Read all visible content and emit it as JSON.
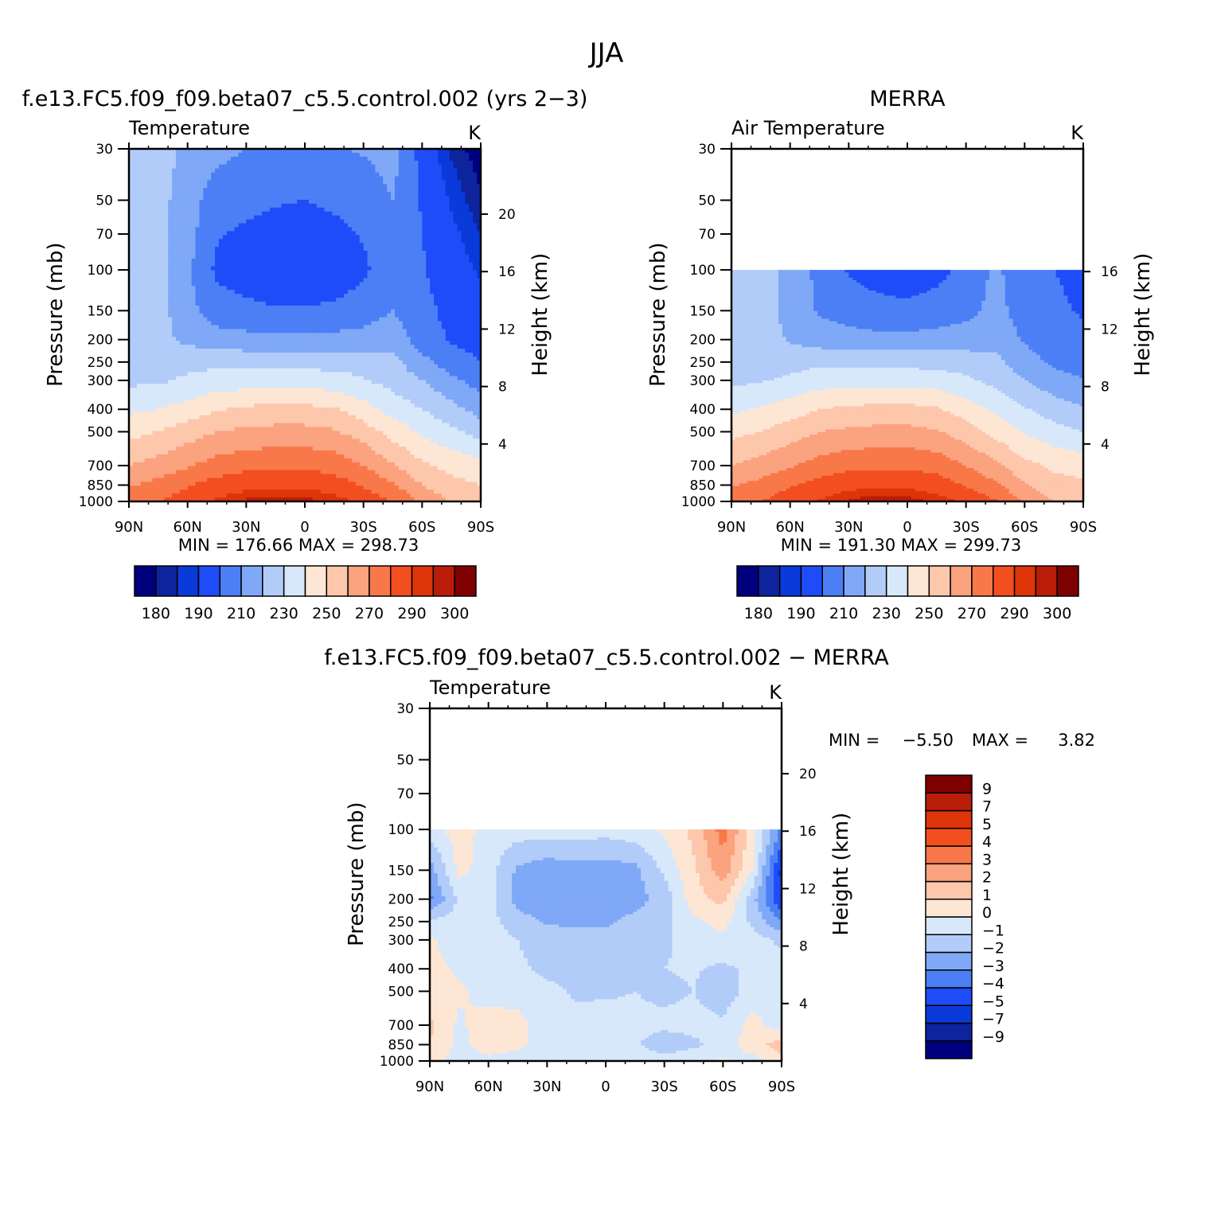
{
  "figure": {
    "title": "JJA"
  },
  "chart_data": [
    {
      "type": "heatmap",
      "panel_title": "f.e13.FC5.f09_f09.beta07_c5.5.control.002 (yrs 2−3)",
      "variable": "Temperature",
      "units": "K",
      "x_ticks": [
        "90N",
        "60N",
        "30N",
        "0",
        "30S",
        "60S",
        "90S"
      ],
      "y_ticks": [
        "30",
        "50",
        "70",
        "100",
        "150",
        "200",
        "250",
        "300",
        "400",
        "500",
        "700",
        "850",
        "1000"
      ],
      "y_ticks_right": [
        "20",
        "16",
        "12",
        "8",
        "4"
      ],
      "ylabel": "Pressure (mb)",
      "ylabel_right": "Height (km)",
      "x_range": [
        90,
        -90
      ],
      "y_range_mb": [
        1000,
        30
      ],
      "y_scale": "log",
      "data_top_mb": 30,
      "min_text": "MIN = 176.66",
      "max_text": "MAX = 298.73",
      "colorbar_labels": [
        "180",
        "190",
        "210",
        "230",
        "250",
        "270",
        "290",
        "300"
      ],
      "colorbar_orientation": "horizontal",
      "field": {
        "lat": [
          90,
          75,
          60,
          45,
          30,
          15,
          0,
          -15,
          -30,
          -45,
          -60,
          -75,
          -90
        ],
        "lev": [
          30,
          50,
          70,
          100,
          150,
          200,
          250,
          300,
          400,
          500,
          700,
          850,
          1000
        ],
        "values": [
          [
            226,
            224,
            218,
            213,
            210,
            209,
            209,
            209,
            211,
            214,
            196,
            184,
            176
          ],
          [
            226,
            224,
            214,
            205,
            203,
            201,
            200,
            202,
            204,
            210,
            199,
            189,
            181
          ],
          [
            227,
            223,
            214,
            201,
            198,
            196,
            195,
            197,
            201,
            208,
            200,
            192,
            185
          ],
          [
            227,
            223,
            212,
            198,
            194,
            192,
            192,
            194,
            198,
            207,
            201,
            194,
            189
          ],
          [
            227,
            224,
            213,
            205,
            203,
            201,
            201,
            202,
            205,
            210,
            203,
            197,
            193
          ],
          [
            225,
            223,
            218,
            214,
            213,
            212,
            212,
            213,
            214,
            216,
            205,
            199,
            196
          ],
          [
            226,
            226,
            226,
            228,
            227,
            227,
            227,
            226,
            225,
            223,
            213,
            205,
            200
          ],
          [
            228,
            228,
            232,
            234,
            235,
            235,
            235,
            234,
            231,
            226,
            220,
            212,
            206
          ],
          [
            238,
            240,
            244,
            249,
            252,
            253,
            253,
            251,
            244,
            236,
            230,
            223,
            216
          ],
          [
            247,
            250,
            255,
            260,
            262,
            263,
            263,
            261,
            255,
            246,
            238,
            232,
            226
          ],
          [
            260,
            264,
            269,
            274,
            277,
            278,
            278,
            276,
            270,
            261,
            252,
            247,
            244
          ],
          [
            269,
            273,
            279,
            284,
            287,
            288,
            288,
            285,
            279,
            271,
            260,
            253,
            250
          ],
          [
            276,
            280,
            286,
            291,
            296,
            298,
            297,
            294,
            288,
            280,
            268,
            259,
            255
          ]
        ]
      },
      "levels": [
        180,
        185,
        190,
        200,
        210,
        220,
        230,
        240,
        250,
        260,
        270,
        280,
        290,
        295,
        300
      ],
      "colors": [
        "#00007F",
        "#0D249C",
        "#0A3AD9",
        "#1F4CF9",
        "#4C7FF5",
        "#7FA9F7",
        "#B2CCF9",
        "#D8E8FB",
        "#FEE6D4",
        "#FDC7AC",
        "#FBA27F",
        "#F87849",
        "#F24E1F",
        "#DD340A",
        "#BA1D09",
        "#7E0000"
      ]
    },
    {
      "type": "heatmap",
      "panel_title": "MERRA",
      "variable": "Air Temperature",
      "units": "K",
      "x_ticks": [
        "90N",
        "60N",
        "30N",
        "0",
        "30S",
        "60S",
        "90S"
      ],
      "y_ticks": [
        "30",
        "50",
        "70",
        "100",
        "150",
        "200",
        "250",
        "300",
        "400",
        "500",
        "700",
        "850",
        "1000"
      ],
      "y_ticks_right": [
        "16",
        "12",
        "8",
        "4"
      ],
      "ylabel": "Pressure (mb)",
      "ylabel_right": "Height (km)",
      "x_range": [
        90,
        -90
      ],
      "y_range_mb": [
        1000,
        30
      ],
      "y_scale": "log",
      "data_top_mb": 100,
      "min_text": "MIN = 191.30",
      "max_text": "MAX = 299.73",
      "colorbar_labels": [
        "180",
        "190",
        "210",
        "230",
        "250",
        "270",
        "290",
        "300"
      ],
      "colorbar_orientation": "horizontal",
      "field": {
        "lat": [
          90,
          75,
          60,
          45,
          30,
          15,
          0,
          -15,
          -30,
          -45,
          -60,
          -75,
          -90
        ],
        "lev": [
          100,
          150,
          200,
          250,
          300,
          400,
          500,
          700,
          850,
          1000
        ],
        "values": [
          [
            226,
            225,
            217,
            207,
            199,
            196,
            195,
            197,
            203,
            212,
            204,
            200,
            197
          ],
          [
            227,
            225,
            216,
            209,
            205,
            203,
            202,
            204,
            207,
            213,
            206,
            202,
            199
          ],
          [
            226,
            225,
            219,
            215,
            214,
            213,
            213,
            214,
            215,
            216,
            209,
            205,
            202
          ],
          [
            226,
            226,
            226,
            228,
            227,
            227,
            227,
            226,
            225,
            223,
            214,
            208,
            205
          ],
          [
            228,
            229,
            232,
            235,
            236,
            236,
            236,
            235,
            232,
            227,
            220,
            214,
            211
          ],
          [
            238,
            241,
            245,
            250,
            252,
            253,
            253,
            251,
            245,
            238,
            231,
            225,
            221
          ],
          [
            247,
            250,
            255,
            260,
            262,
            263,
            263,
            261,
            255,
            247,
            239,
            234,
            230
          ],
          [
            260,
            264,
            269,
            274,
            277,
            278,
            278,
            276,
            270,
            262,
            253,
            248,
            246
          ],
          [
            269,
            273,
            279,
            284,
            287,
            288,
            288,
            285,
            279,
            272,
            261,
            254,
            252
          ],
          [
            276,
            280,
            286,
            291,
            296,
            299,
            298,
            294,
            288,
            281,
            269,
            260,
            257
          ]
        ]
      },
      "levels": [
        180,
        185,
        190,
        200,
        210,
        220,
        230,
        240,
        250,
        260,
        270,
        280,
        290,
        295,
        300
      ],
      "colors": [
        "#00007F",
        "#0D249C",
        "#0A3AD9",
        "#1F4CF9",
        "#4C7FF5",
        "#7FA9F7",
        "#B2CCF9",
        "#D8E8FB",
        "#FEE6D4",
        "#FDC7AC",
        "#FBA27F",
        "#F87849",
        "#F24E1F",
        "#DD340A",
        "#BA1D09",
        "#7E0000"
      ]
    },
    {
      "type": "heatmap",
      "panel_title": "f.e13.FC5.f09_f09.beta07_c5.5.control.002 − MERRA",
      "variable": "Temperature",
      "units": "K",
      "x_ticks": [
        "90N",
        "60N",
        "30N",
        "0",
        "30S",
        "60S",
        "90S"
      ],
      "y_ticks": [
        "30",
        "50",
        "70",
        "100",
        "150",
        "200",
        "250",
        "300",
        "400",
        "500",
        "700",
        "850",
        "1000"
      ],
      "y_ticks_right": [
        "20",
        "16",
        "12",
        "8",
        "4"
      ],
      "ylabel": "Pressure (mb)",
      "ylabel_right": "Height (km)",
      "x_range": [
        90,
        -90
      ],
      "y_range_mb": [
        1000,
        30
      ],
      "y_scale": "log",
      "data_top_mb": 100,
      "min_label": "MIN =",
      "min_value": "−5.50",
      "max_label": "MAX =",
      "max_value": "3.82",
      "colorbar_labels": [
        "9",
        "7",
        "5",
        "4",
        "3",
        "2",
        "1",
        "0",
        "−1",
        "−2",
        "−3",
        "−4",
        "−5",
        "−7",
        "−9"
      ],
      "colorbar_orientation": "vertical",
      "field": {
        "lat": [
          90,
          75,
          60,
          45,
          30,
          15,
          0,
          -15,
          -30,
          -45,
          -60,
          -75,
          -90
        ],
        "lev": [
          100,
          150,
          200,
          250,
          300,
          400,
          500,
          700,
          850,
          1000
        ],
        "values": [
          [
            -0.5,
            0.5,
            -0.4,
            -0.5,
            -0.5,
            -0.5,
            -0.6,
            -0.4,
            0.2,
            1.3,
            3.5,
            0.5,
            -3.2
          ],
          [
            -2.5,
            0.3,
            -0.5,
            -2.2,
            -2.6,
            -2.5,
            -2.5,
            -2.3,
            -0.8,
            0.8,
            2.6,
            0.0,
            -5.4
          ],
          [
            -3.2,
            -0.8,
            -0.6,
            -2.4,
            -2.6,
            -2.3,
            -2.5,
            -2.4,
            -1.6,
            0.6,
            1.3,
            -1.6,
            -5.0
          ],
          [
            -0.8,
            -0.5,
            -0.6,
            -1.6,
            -2.1,
            -2.2,
            -2.2,
            -1.7,
            -1.2,
            -0.2,
            0.3,
            -1.2,
            -3.0
          ],
          [
            0.2,
            -0.7,
            -0.5,
            -1.0,
            -1.6,
            -1.5,
            -1.5,
            -1.5,
            -1.1,
            -0.8,
            -0.2,
            -0.6,
            -1.2
          ],
          [
            0.4,
            -0.2,
            -0.4,
            -0.8,
            -1.2,
            -1.2,
            -1.3,
            -1.1,
            -1.0,
            -0.9,
            -1.2,
            -0.8,
            -0.5
          ],
          [
            0.5,
            0.2,
            -0.5,
            -0.5,
            -0.8,
            -1.1,
            -1.1,
            -1.0,
            -1.2,
            -1.0,
            -1.6,
            -0.6,
            -0.4
          ],
          [
            1.2,
            -0.2,
            0.6,
            0.4,
            -0.6,
            -0.8,
            -0.7,
            -0.8,
            -0.8,
            -0.7,
            -0.8,
            0.4,
            -0.6
          ],
          [
            1.0,
            -0.3,
            0.5,
            0.2,
            -0.5,
            -0.7,
            -0.6,
            -0.9,
            -1.5,
            -1.2,
            -0.6,
            0.5,
            1.5
          ],
          [
            0.4,
            -0.5,
            -0.3,
            -0.4,
            -0.6,
            -0.6,
            -0.5,
            -0.4,
            -0.7,
            -0.3,
            0.2,
            -0.4,
            0.6
          ]
        ]
      },
      "levels": [
        -9,
        -7,
        -5,
        -4,
        -3,
        -2,
        -1,
        0,
        1,
        2,
        3,
        4,
        5,
        7,
        9
      ],
      "colors": [
        "#00007F",
        "#0D249C",
        "#0A3AD9",
        "#1F4CF9",
        "#4C7FF5",
        "#7FA9F7",
        "#B2CCF9",
        "#D8E8FB",
        "#FEE6D4",
        "#FDC7AC",
        "#FBA27F",
        "#F87849",
        "#F24E1F",
        "#DD340A",
        "#BA1D09",
        "#7E0000"
      ]
    }
  ]
}
